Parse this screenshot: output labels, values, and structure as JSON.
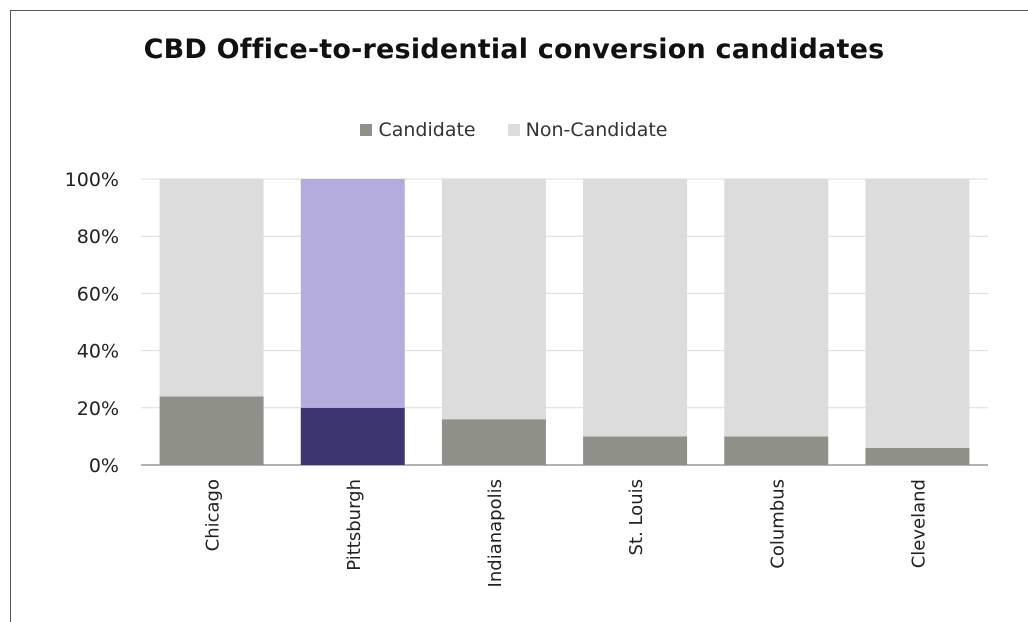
{
  "chart_data": {
    "type": "bar",
    "stacked": true,
    "title": "CBD Office-to-residential conversion candidates",
    "categories": [
      "Chicago",
      "Pittsburgh",
      "Indianapolis",
      "St. Louis",
      "Columbus",
      "Cleveland"
    ],
    "series": [
      {
        "name": "Candidate",
        "values": [
          24,
          20,
          16,
          10,
          10,
          6
        ],
        "color": "#8f9088"
      },
      {
        "name": "Non-Candidate",
        "values": [
          76,
          80,
          84,
          90,
          90,
          94
        ],
        "color": "#dcdcdc"
      }
    ],
    "highlight": {
      "category": "Pittsburgh",
      "colors": {
        "Candidate": "#3d3570",
        "Non-Candidate": "#b3acdc"
      }
    },
    "y_ticks": [
      "0%",
      "20%",
      "40%",
      "60%",
      "80%",
      "100%"
    ],
    "ylim": [
      0,
      100
    ],
    "grid": true,
    "legend_position": "top-center"
  }
}
